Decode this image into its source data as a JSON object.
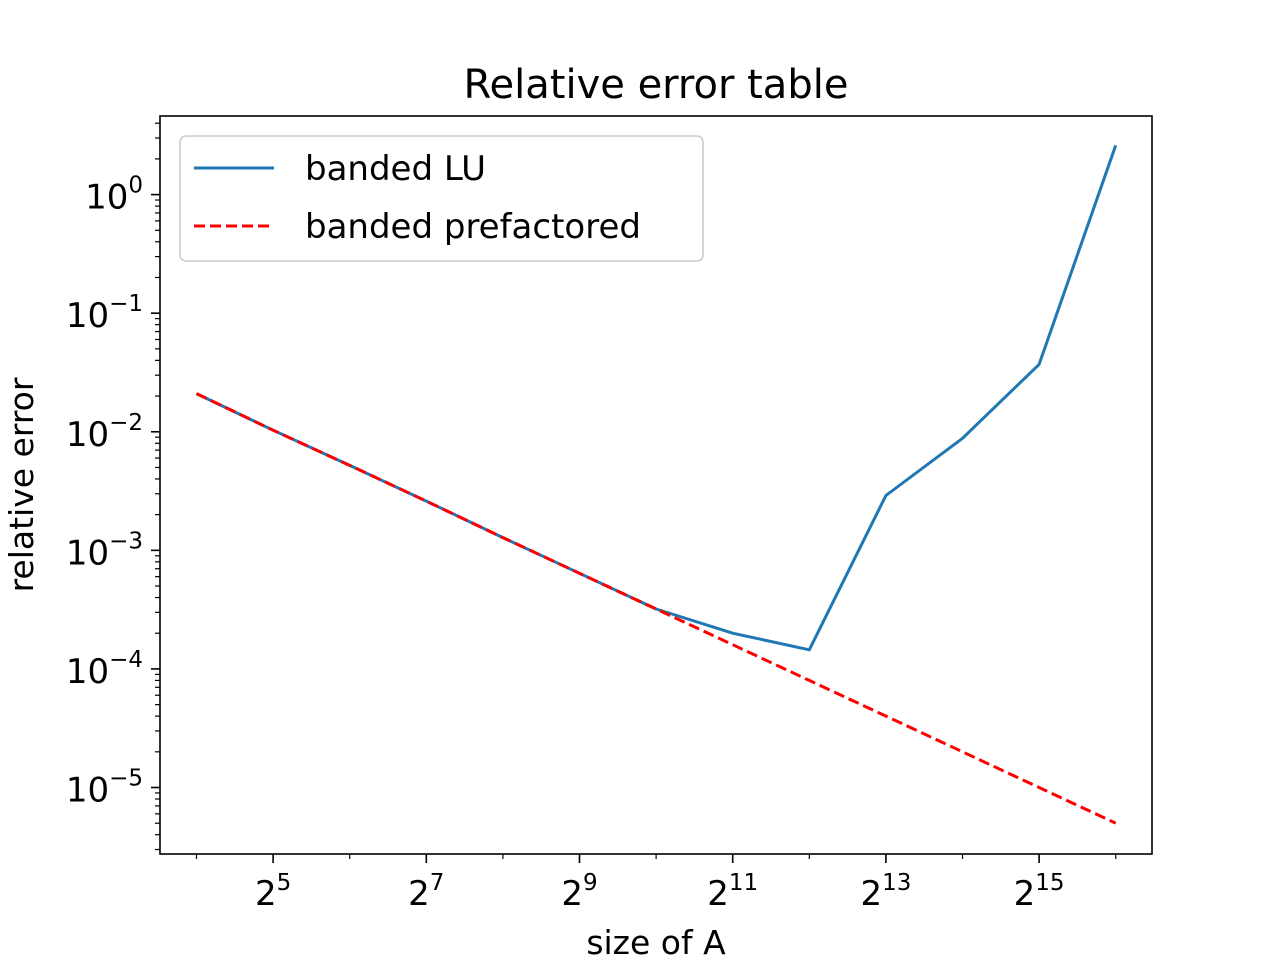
{
  "chart_data": {
    "type": "line",
    "title": "Relative error table",
    "xlabel": "size of A",
    "ylabel": "relative error",
    "x_scale": "log2",
    "y_scale": "log10",
    "x": [
      16,
      32,
      64,
      128,
      256,
      512,
      1024,
      2048,
      4096,
      8192,
      16384,
      32768,
      65536
    ],
    "xlim": [
      11.5,
      91000
    ],
    "ylim": [
      2.75e-06,
      4.6
    ],
    "x_ticks": [
      {
        "base": "2",
        "exp": "5",
        "value": 32
      },
      {
        "base": "2",
        "exp": "7",
        "value": 128
      },
      {
        "base": "2",
        "exp": "9",
        "value": 512
      },
      {
        "base": "2",
        "exp": "11",
        "value": 2048
      },
      {
        "base": "2",
        "exp": "13",
        "value": 8192
      },
      {
        "base": "2",
        "exp": "15",
        "value": 32768
      }
    ],
    "y_ticks": [
      {
        "base": "10",
        "exp": "0",
        "value": 1
      },
      {
        "base": "10",
        "exp": "−1",
        "value": 0.1
      },
      {
        "base": "10",
        "exp": "−2",
        "value": 0.01
      },
      {
        "base": "10",
        "exp": "−3",
        "value": 0.001
      },
      {
        "base": "10",
        "exp": "−4",
        "value": 0.0001
      },
      {
        "base": "10",
        "exp": "−5",
        "value": 1e-05
      }
    ],
    "series": [
      {
        "name": "banded LU",
        "color": "#1f77b4",
        "style": "solid",
        "values": [
          0.021,
          0.0103,
          0.0052,
          0.0026,
          0.00128,
          0.00064,
          0.00032,
          0.0002,
          0.000145,
          0.0029,
          0.0088,
          0.037,
          2.6
        ]
      },
      {
        "name": "banded prefactored",
        "color": "#ff0000",
        "style": "dashed",
        "values": [
          0.021,
          0.0103,
          0.0052,
          0.0026,
          0.00128,
          0.00064,
          0.00032,
          0.00016,
          8e-05,
          4e-05,
          2e-05,
          1e-05,
          5e-06
        ]
      }
    ],
    "legend_position": "top-left",
    "grid": false
  }
}
